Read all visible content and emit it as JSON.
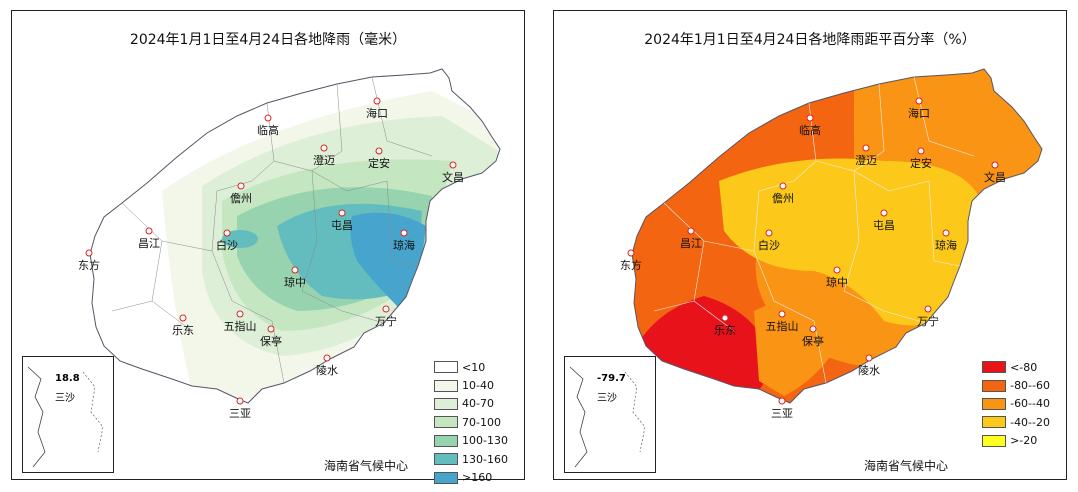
{
  "left_map": {
    "title": "2024年1月1日至4月24日各地降雨（毫米）",
    "credit": "海南省气候中心",
    "inset": {
      "value": "18.8",
      "name": "三沙"
    },
    "legend": [
      {
        "label": "<10",
        "color": "#ffffff"
      },
      {
        "label": "10-40",
        "color": "#f2f7ea"
      },
      {
        "label": "40-70",
        "color": "#ddefd7"
      },
      {
        "label": "70-100",
        "color": "#c4e6c1"
      },
      {
        "label": "100-130",
        "color": "#98d3b0"
      },
      {
        "label": "130-160",
        "color": "#63bdbf"
      },
      {
        "label": ">160",
        "color": "#47a4cd"
      }
    ],
    "cities": [
      "海口",
      "临高",
      "澄迈",
      "定安",
      "文昌",
      "儋州",
      "屯昌",
      "白沙",
      "昌江",
      "琼海",
      "东方",
      "琼中",
      "五指山",
      "万宁",
      "乐东",
      "保亭",
      "陵水",
      "三亚"
    ]
  },
  "right_map": {
    "title": "2024年1月1日至4月24日各地降雨距平百分率（%）",
    "credit": "海南省气候中心",
    "inset": {
      "value": "-79.7",
      "name": "三沙"
    },
    "legend": [
      {
        "label": "<-80",
        "color": "#e8121a"
      },
      {
        "label": "-80--60",
        "color": "#f46512"
      },
      {
        "label": "-60--40",
        "color": "#f99414"
      },
      {
        "label": "-40--20",
        "color": "#fcc81a"
      },
      {
        "label": ">-20",
        "color": "#ffff22"
      }
    ],
    "cities": [
      "海口",
      "临高",
      "澄迈",
      "定安",
      "文昌",
      "儋州",
      "屯昌",
      "白沙",
      "昌江",
      "琼海",
      "东方",
      "琼中",
      "五指山",
      "万宁",
      "乐东",
      "保亭",
      "陵水",
      "三亚"
    ]
  }
}
